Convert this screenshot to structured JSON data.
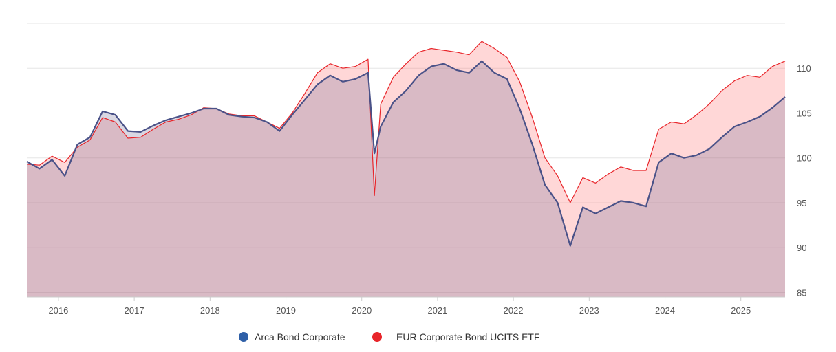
{
  "chart_data": {
    "type": "area",
    "title": "",
    "xlabel": "",
    "ylabel": "",
    "x_ticks": [
      "2016",
      "2017",
      "2018",
      "2019",
      "2020",
      "2021",
      "2022",
      "2023",
      "2024",
      "2025"
    ],
    "y_ticks": [
      85,
      90,
      95,
      100,
      105,
      110
    ],
    "xlim": [
      "2015-08",
      "2025-08"
    ],
    "ylim": [
      84.5,
      115
    ],
    "grid": true,
    "legend_position": "bottom-center",
    "x": [
      "2015-08",
      "2015-10",
      "2015-12",
      "2016-02",
      "2016-04",
      "2016-06",
      "2016-08",
      "2016-10",
      "2016-12",
      "2017-02",
      "2017-04",
      "2017-06",
      "2017-08",
      "2017-10",
      "2017-12",
      "2018-02",
      "2018-04",
      "2018-06",
      "2018-08",
      "2018-10",
      "2018-12",
      "2019-02",
      "2019-04",
      "2019-06",
      "2019-08",
      "2019-10",
      "2019-12",
      "2020-02",
      "2020-03",
      "2020-04",
      "2020-06",
      "2020-08",
      "2020-10",
      "2020-12",
      "2021-02",
      "2021-04",
      "2021-06",
      "2021-08",
      "2021-10",
      "2021-12",
      "2022-02",
      "2022-04",
      "2022-06",
      "2022-08",
      "2022-10",
      "2022-12",
      "2023-02",
      "2023-04",
      "2023-06",
      "2023-08",
      "2023-10",
      "2023-12",
      "2024-02",
      "2024-04",
      "2024-06",
      "2024-08",
      "2024-10",
      "2024-12",
      "2025-02",
      "2025-04",
      "2025-06",
      "2025-08"
    ],
    "series": [
      {
        "name": "Arca Bond Corporate",
        "color": "#2e5fa7",
        "values": [
          99.6,
          98.8,
          99.8,
          98.0,
          101.5,
          102.3,
          105.2,
          104.8,
          103.0,
          102.9,
          103.6,
          104.2,
          104.6,
          105.0,
          105.5,
          105.5,
          104.8,
          104.6,
          104.5,
          104.0,
          103.0,
          104.8,
          106.5,
          108.2,
          109.2,
          108.5,
          108.8,
          109.5,
          100.5,
          103.5,
          106.2,
          107.5,
          109.2,
          110.2,
          110.5,
          109.8,
          109.5,
          110.8,
          109.5,
          108.8,
          105.5,
          101.5,
          97.0,
          95.0,
          90.2,
          94.5,
          93.8,
          94.5,
          95.2,
          95.0,
          94.6,
          99.5,
          100.5,
          100.0,
          100.3,
          101.0,
          102.3,
          103.5,
          104.0,
          104.6,
          105.6,
          106.8
        ]
      },
      {
        "name": "EUR Corporate Bond UCITS ETF",
        "color": "#e8252a",
        "values": [
          99.3,
          99.2,
          100.2,
          99.5,
          101.2,
          102.0,
          104.5,
          104.0,
          102.2,
          102.3,
          103.2,
          104.0,
          104.3,
          104.8,
          105.6,
          105.5,
          104.9,
          104.7,
          104.7,
          104.0,
          103.3,
          105.0,
          107.2,
          109.5,
          110.5,
          110.0,
          110.2,
          111.0,
          95.8,
          106.0,
          109.0,
          110.5,
          111.8,
          112.2,
          112.0,
          111.8,
          111.5,
          113.0,
          112.2,
          111.2,
          108.5,
          104.5,
          100.0,
          98.0,
          95.0,
          97.8,
          97.2,
          98.2,
          99.0,
          98.6,
          98.6,
          103.2,
          104.0,
          103.8,
          104.8,
          106.0,
          107.5,
          108.6,
          109.2,
          109.0,
          110.2,
          110.8
        ]
      }
    ]
  }
}
